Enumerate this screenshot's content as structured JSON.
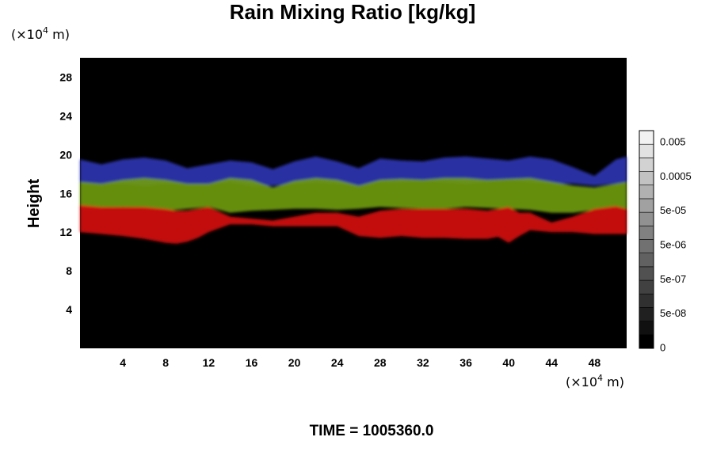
{
  "chart_data": {
    "type": "heatmap",
    "title": "Rain Mixing Ratio [kg/kg]",
    "ylabel": "Height",
    "xlabel": "",
    "x_unit_prefix": "(×10",
    "x_unit_exp": "4",
    "x_unit_suffix": " m)",
    "y_unit_prefix": "(×10",
    "y_unit_exp": "4",
    "y_unit_suffix": " m)",
    "xlim": [
      0,
      51
    ],
    "ylim": [
      0,
      30
    ],
    "x_ticks": [
      "4",
      "8",
      "12",
      "16",
      "20",
      "24",
      "28",
      "32",
      "36",
      "40",
      "44",
      "48"
    ],
    "x_tick_values": [
      4,
      8,
      12,
      16,
      20,
      24,
      28,
      32,
      36,
      40,
      44,
      48
    ],
    "y_ticks": [
      "4",
      "8",
      "12",
      "16",
      "20",
      "24",
      "28"
    ],
    "y_tick_values": [
      4,
      8,
      12,
      16,
      20,
      24,
      28
    ],
    "background_color": "#000000",
    "layers": [
      {
        "color": "#2a35b0",
        "x": [
          0,
          2,
          4,
          6,
          8,
          10,
          12,
          14,
          16,
          18,
          20,
          22,
          24,
          26,
          28,
          30,
          32,
          34,
          36,
          38,
          40,
          42,
          44,
          46,
          48,
          50,
          51
        ],
        "top": [
          19.5,
          19.0,
          19.5,
          19.7,
          19.4,
          18.6,
          19.0,
          19.4,
          19.2,
          18.5,
          19.3,
          19.8,
          19.3,
          18.6,
          19.6,
          19.4,
          19.3,
          19.7,
          19.8,
          19.6,
          19.4,
          19.8,
          19.5,
          18.7,
          17.8,
          19.5,
          19.8
        ],
        "bottom": [
          17.0,
          17.0,
          17.0,
          16.8,
          17.0,
          17.0,
          17.0,
          17.2,
          16.8,
          16.8,
          17.0,
          17.2,
          17.0,
          16.8,
          17.2,
          17.2,
          17.3,
          17.2,
          17.0,
          17.2,
          17.4,
          17.2,
          17.0,
          17.0,
          16.8,
          17.0,
          17.0
        ]
      },
      {
        "color": "#6f9a10",
        "x": [
          0,
          2,
          4,
          6,
          8,
          10,
          12,
          14,
          16,
          18,
          20,
          22,
          24,
          26,
          28,
          30,
          32,
          34,
          36,
          38,
          40,
          42,
          44,
          46,
          48,
          50,
          51
        ],
        "top": [
          17.2,
          17.0,
          17.4,
          17.6,
          17.4,
          17.0,
          17.0,
          17.6,
          17.4,
          16.6,
          17.3,
          17.6,
          17.4,
          16.8,
          17.4,
          17.5,
          17.4,
          17.6,
          17.6,
          17.4,
          17.5,
          17.6,
          17.2,
          16.8,
          16.6,
          17.0,
          17.2
        ],
        "bottom": [
          14.4,
          14.4,
          14.6,
          14.4,
          14.2,
          14.4,
          14.6,
          14.0,
          14.2,
          14.3,
          14.4,
          14.4,
          14.3,
          14.4,
          14.6,
          14.5,
          14.4,
          14.4,
          14.6,
          14.5,
          14.4,
          14.3,
          14.0,
          14.0,
          14.3,
          14.4,
          14.4
        ]
      },
      {
        "color": "#d40d0d",
        "x": [
          0,
          2,
          4,
          6,
          8,
          9,
          10,
          11,
          12,
          14,
          16,
          18,
          20,
          22,
          24,
          26,
          28,
          30,
          32,
          34,
          36,
          38,
          39,
          40,
          41,
          42,
          44,
          46,
          48,
          50,
          51
        ],
        "top": [
          14.8,
          14.6,
          14.6,
          14.6,
          14.4,
          14.2,
          14.2,
          14.4,
          14.6,
          13.6,
          13.4,
          13.2,
          13.6,
          14.0,
          14.0,
          13.6,
          14.2,
          14.4,
          14.4,
          14.4,
          14.4,
          14.2,
          14.4,
          14.6,
          14.0,
          14.0,
          13.0,
          13.6,
          14.4,
          14.7,
          14.4
        ],
        "bottom": [
          12.0,
          11.8,
          11.6,
          11.3,
          10.9,
          10.8,
          11.0,
          11.4,
          12.0,
          12.8,
          12.8,
          12.6,
          12.6,
          12.6,
          12.6,
          11.6,
          11.4,
          11.6,
          11.4,
          11.4,
          11.3,
          11.3,
          11.5,
          10.9,
          11.6,
          12.2,
          12.0,
          12.0,
          11.8,
          11.8,
          11.8
        ]
      }
    ],
    "colorbar": {
      "labels": [
        "0.005",
        "0.0005",
        "5e-05",
        "5e-06",
        "5e-07",
        "5e-08",
        "0"
      ],
      "levels": 16,
      "bottom_color": "#000000",
      "top_color": "#f2f2f2"
    },
    "time_label": "TIME = 1005360.0"
  }
}
